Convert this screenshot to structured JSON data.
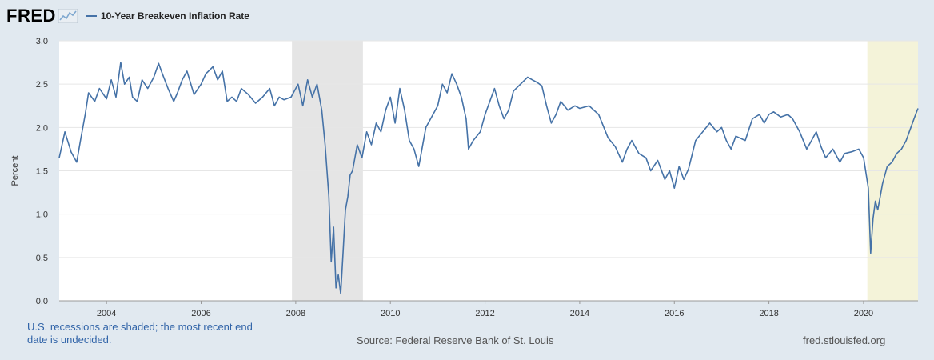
{
  "brand": {
    "logo_text": "FRED"
  },
  "colors": {
    "series": "#4572a7",
    "recession_shade": "#e5e5e5",
    "covid_shade": "#f4f3d9",
    "page_bg": "#e1e9f0"
  },
  "chart_data": {
    "type": "line",
    "title": "10-Year Breakeven Inflation Rate",
    "xlabel": "",
    "ylabel": "Percent",
    "xlim": [
      2003.0,
      2021.15
    ],
    "ylim": [
      0.0,
      3.0
    ],
    "x_ticks": [
      2004,
      2006,
      2008,
      2010,
      2012,
      2014,
      2016,
      2018,
      2020
    ],
    "y_ticks": [
      "0.0",
      "0.5",
      "1.0",
      "1.5",
      "2.0",
      "2.5",
      "3.0"
    ],
    "shaded_regions": [
      {
        "start": 2007.92,
        "end": 2009.42,
        "kind": "recession"
      },
      {
        "start": 2020.08,
        "end": 2021.15,
        "kind": "recession-ongoing"
      }
    ],
    "series": [
      {
        "name": "10-Year Breakeven Inflation Rate",
        "x": [
          2003.0,
          2003.12,
          2003.25,
          2003.37,
          2003.45,
          2003.55,
          2003.62,
          2003.75,
          2003.85,
          2004.0,
          2004.1,
          2004.2,
          2004.3,
          2004.38,
          2004.48,
          2004.55,
          2004.65,
          2004.75,
          2004.87,
          2005.0,
          2005.1,
          2005.18,
          2005.3,
          2005.42,
          2005.5,
          2005.6,
          2005.7,
          2005.85,
          2006.0,
          2006.1,
          2006.25,
          2006.35,
          2006.45,
          2006.55,
          2006.65,
          2006.75,
          2006.85,
          2007.0,
          2007.15,
          2007.3,
          2007.45,
          2007.55,
          2007.65,
          2007.75,
          2007.9,
          2008.05,
          2008.15,
          2008.25,
          2008.35,
          2008.45,
          2008.55,
          2008.62,
          2008.7,
          2008.75,
          2008.8,
          2008.85,
          2008.9,
          2008.95,
          2009.0,
          2009.05,
          2009.1,
          2009.15,
          2009.2,
          2009.3,
          2009.4,
          2009.5,
          2009.6,
          2009.7,
          2009.8,
          2009.9,
          2010.0,
          2010.1,
          2010.2,
          2010.3,
          2010.4,
          2010.5,
          2010.6,
          2010.65,
          2010.75,
          2010.9,
          2011.0,
          2011.1,
          2011.2,
          2011.3,
          2011.4,
          2011.5,
          2011.6,
          2011.65,
          2011.75,
          2011.9,
          2012.0,
          2012.1,
          2012.2,
          2012.3,
          2012.4,
          2012.5,
          2012.6,
          2012.75,
          2012.9,
          2013.0,
          2013.1,
          2013.2,
          2013.3,
          2013.4,
          2013.5,
          2013.6,
          2013.75,
          2013.9,
          2014.0,
          2014.2,
          2014.4,
          2014.6,
          2014.75,
          2014.9,
          2015.0,
          2015.1,
          2015.25,
          2015.4,
          2015.5,
          2015.65,
          2015.8,
          2015.9,
          2016.0,
          2016.1,
          2016.2,
          2016.3,
          2016.45,
          2016.6,
          2016.75,
          2016.9,
          2017.0,
          2017.1,
          2017.2,
          2017.3,
          2017.5,
          2017.65,
          2017.8,
          2017.9,
          2018.0,
          2018.1,
          2018.25,
          2018.4,
          2018.5,
          2018.65,
          2018.8,
          2018.9,
          2019.0,
          2019.1,
          2019.2,
          2019.35,
          2019.5,
          2019.6,
          2019.75,
          2019.9,
          2020.0,
          2020.1,
          2020.15,
          2020.2,
          2020.25,
          2020.3,
          2020.35,
          2020.4,
          2020.5,
          2020.6,
          2020.7,
          2020.8,
          2020.9,
          2021.0,
          2021.1,
          2021.15
        ],
        "y": [
          1.65,
          1.95,
          1.72,
          1.6,
          1.85,
          2.15,
          2.4,
          2.3,
          2.45,
          2.33,
          2.55,
          2.35,
          2.75,
          2.5,
          2.58,
          2.35,
          2.3,
          2.55,
          2.45,
          2.58,
          2.74,
          2.62,
          2.45,
          2.3,
          2.4,
          2.55,
          2.65,
          2.38,
          2.5,
          2.62,
          2.7,
          2.55,
          2.65,
          2.3,
          2.35,
          2.3,
          2.45,
          2.38,
          2.28,
          2.35,
          2.45,
          2.25,
          2.35,
          2.32,
          2.35,
          2.5,
          2.25,
          2.55,
          2.35,
          2.5,
          2.2,
          1.8,
          1.2,
          0.45,
          0.85,
          0.15,
          0.3,
          0.08,
          0.55,
          1.05,
          1.2,
          1.45,
          1.5,
          1.8,
          1.65,
          1.95,
          1.8,
          2.05,
          1.95,
          2.2,
          2.35,
          2.05,
          2.45,
          2.2,
          1.85,
          1.75,
          1.55,
          1.7,
          2.0,
          2.15,
          2.25,
          2.5,
          2.4,
          2.62,
          2.5,
          2.35,
          2.1,
          1.75,
          1.85,
          1.95,
          2.15,
          2.3,
          2.45,
          2.25,
          2.1,
          2.2,
          2.42,
          2.5,
          2.58,
          2.55,
          2.52,
          2.48,
          2.25,
          2.05,
          2.15,
          2.3,
          2.2,
          2.25,
          2.22,
          2.25,
          2.15,
          1.88,
          1.78,
          1.6,
          1.75,
          1.85,
          1.7,
          1.65,
          1.5,
          1.62,
          1.4,
          1.5,
          1.3,
          1.55,
          1.4,
          1.52,
          1.85,
          1.95,
          2.05,
          1.95,
          2.0,
          1.85,
          1.75,
          1.9,
          1.85,
          2.1,
          2.15,
          2.05,
          2.15,
          2.18,
          2.12,
          2.15,
          2.1,
          1.95,
          1.75,
          1.85,
          1.95,
          1.78,
          1.65,
          1.75,
          1.6,
          1.7,
          1.72,
          1.75,
          1.65,
          1.3,
          0.55,
          0.95,
          1.15,
          1.05,
          1.2,
          1.35,
          1.55,
          1.6,
          1.7,
          1.75,
          1.85,
          2.0,
          2.15,
          2.22
        ]
      }
    ]
  },
  "footer": {
    "recession_note": "U.S. recessions are shaded; the most recent end date is undecided.",
    "source": "Source: Federal Reserve Bank of St. Louis",
    "site": "fred.stlouisfed.org"
  }
}
